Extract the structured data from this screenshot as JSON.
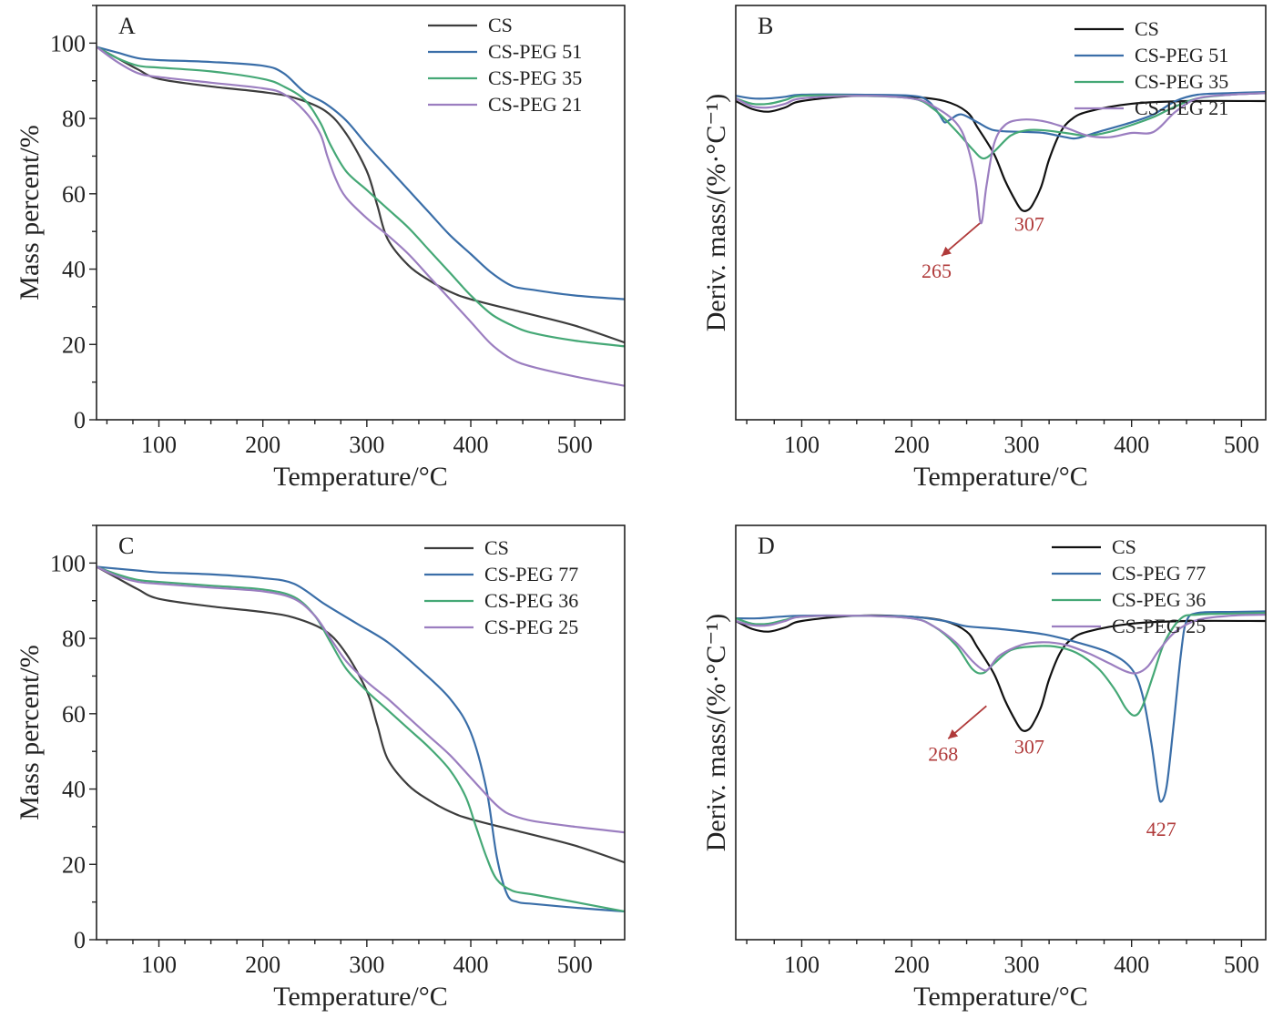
{
  "colors": {
    "CS_mass": "#3d3d3d",
    "CS_deriv": "#111111",
    "blue": "#3a6ea8",
    "green": "#45a876",
    "purple": "#9b7ec0",
    "annotation": "#b03a3a"
  },
  "chart_data": [
    {
      "type": "line",
      "panel": "A",
      "xlabel": "Temperature/°C",
      "ylabel": "Mass percent/%",
      "xlim": [
        40,
        548
      ],
      "ylim": [
        0,
        110
      ],
      "xticks": [
        100,
        200,
        300,
        400,
        500
      ],
      "yticks": [
        0,
        20,
        40,
        60,
        80,
        100
      ],
      "legend_position": "top-right",
      "series": [
        {
          "name": "CS",
          "color": "#3d3d3d",
          "x": [
            40,
            60,
            80,
            100,
            150,
            200,
            230,
            260,
            280,
            300,
            310,
            320,
            340,
            360,
            380,
            400,
            450,
            500,
            548
          ],
          "y": [
            99,
            96,
            93,
            90.5,
            88.5,
            87,
            85.5,
            82,
            76,
            66,
            57,
            48,
            41,
            37,
            34,
            32,
            28.5,
            25,
            20.5
          ]
        },
        {
          "name": "CS-PEG 51",
          "color": "#3a6ea8",
          "x": [
            40,
            60,
            80,
            100,
            150,
            200,
            220,
            240,
            260,
            280,
            300,
            320,
            340,
            360,
            380,
            400,
            420,
            440,
            460,
            500,
            548
          ],
          "y": [
            99,
            97.5,
            96,
            95.5,
            95,
            94,
            92,
            87,
            84,
            79.5,
            73,
            67,
            61,
            55,
            49,
            44,
            39,
            35.5,
            34.5,
            33,
            32
          ]
        },
        {
          "name": "CS-PEG 35",
          "color": "#45a876",
          "x": [
            40,
            60,
            80,
            100,
            150,
            200,
            220,
            240,
            255,
            265,
            280,
            300,
            320,
            340,
            360,
            380,
            400,
            420,
            440,
            460,
            500,
            548
          ],
          "y": [
            99,
            96,
            94,
            93.5,
            92.5,
            90.5,
            88.5,
            85,
            79,
            73,
            66,
            61,
            56,
            51,
            45,
            39,
            33,
            28,
            25,
            23,
            21,
            19.5
          ]
        },
        {
          "name": "CS-PEG 21",
          "color": "#9b7ec0",
          "x": [
            40,
            60,
            80,
            100,
            150,
            200,
            220,
            240,
            255,
            262,
            270,
            280,
            300,
            320,
            340,
            360,
            380,
            400,
            420,
            440,
            460,
            500,
            548
          ],
          "y": [
            99,
            95,
            92,
            91,
            89.5,
            88,
            86.5,
            82,
            76,
            70,
            64,
            59,
            53.5,
            49,
            44,
            38,
            32,
            26,
            20,
            16,
            14,
            11.5,
            9
          ]
        }
      ]
    },
    {
      "type": "line",
      "panel": "B",
      "xlabel": "Temperature/°C",
      "ylabel": "Deriv. mass/(%·°C⁻¹)",
      "xlim": [
        40,
        522
      ],
      "ylim": [
        -0.62,
        0.16
      ],
      "xticks": [
        100,
        200,
        300,
        400,
        500
      ],
      "yticks": [],
      "legend_position": "top-right",
      "annotations": [
        {
          "label": "265",
          "x": 262,
          "y": -0.25,
          "arrow": true
        },
        {
          "label": "307",
          "x": 307,
          "y": -0.22,
          "arrow": false
        }
      ],
      "series": [
        {
          "name": "CS",
          "color": "#111111",
          "x": [
            40,
            55,
            70,
            85,
            100,
            150,
            200,
            230,
            250,
            260,
            275,
            285,
            295,
            300,
            305,
            310,
            318,
            325,
            335,
            345,
            360,
            400,
            450,
            522
          ],
          "y": [
            -0.02,
            -0.035,
            -0.04,
            -0.032,
            -0.02,
            -0.01,
            -0.012,
            -0.02,
            -0.04,
            -0.07,
            -0.12,
            -0.17,
            -0.21,
            -0.225,
            -0.226,
            -0.215,
            -0.18,
            -0.13,
            -0.08,
            -0.055,
            -0.04,
            -0.025,
            -0.02,
            -0.02
          ]
        },
        {
          "name": "CS-PEG 51",
          "color": "#3a6ea8",
          "x": [
            40,
            55,
            70,
            85,
            100,
            150,
            200,
            215,
            225,
            230,
            235,
            245,
            260,
            275,
            300,
            320,
            340,
            350,
            370,
            400,
            420,
            440,
            460,
            490,
            522
          ],
          "y": [
            -0.01,
            -0.015,
            -0.015,
            -0.012,
            -0.008,
            -0.008,
            -0.01,
            -0.02,
            -0.045,
            -0.06,
            -0.055,
            -0.045,
            -0.06,
            -0.075,
            -0.078,
            -0.08,
            -0.088,
            -0.09,
            -0.078,
            -0.06,
            -0.045,
            -0.02,
            -0.008,
            -0.005,
            -0.003
          ]
        },
        {
          "name": "CS-PEG 35",
          "color": "#45a876",
          "x": [
            40,
            55,
            70,
            85,
            100,
            150,
            200,
            220,
            240,
            255,
            265,
            275,
            290,
            305,
            320,
            340,
            360,
            380,
            400,
            420,
            440,
            460,
            490,
            522
          ],
          "y": [
            -0.015,
            -0.025,
            -0.025,
            -0.018,
            -0.01,
            -0.01,
            -0.015,
            -0.035,
            -0.075,
            -0.11,
            -0.128,
            -0.115,
            -0.085,
            -0.075,
            -0.075,
            -0.08,
            -0.085,
            -0.078,
            -0.065,
            -0.05,
            -0.03,
            -0.015,
            -0.008,
            -0.005
          ]
        },
        {
          "name": "CS-PEG 21",
          "color": "#9b7ec0",
          "x": [
            40,
            55,
            70,
            85,
            100,
            150,
            200,
            220,
            240,
            250,
            258,
            263,
            268,
            275,
            285,
            300,
            320,
            340,
            360,
            380,
            400,
            420,
            440,
            460,
            490,
            522
          ],
          "y": [
            -0.015,
            -0.03,
            -0.032,
            -0.025,
            -0.015,
            -0.01,
            -0.015,
            -0.03,
            -0.06,
            -0.1,
            -0.17,
            -0.25,
            -0.18,
            -0.1,
            -0.065,
            -0.055,
            -0.058,
            -0.07,
            -0.085,
            -0.088,
            -0.08,
            -0.078,
            -0.04,
            -0.015,
            -0.008,
            -0.005
          ]
        }
      ]
    },
    {
      "type": "line",
      "panel": "C",
      "xlabel": "Temperature/°C",
      "ylabel": "Mass percent/%",
      "xlim": [
        40,
        548
      ],
      "ylim": [
        0,
        110
      ],
      "xticks": [
        100,
        200,
        300,
        400,
        500
      ],
      "yticks": [
        0,
        20,
        40,
        60,
        80,
        100
      ],
      "legend_position": "top-right",
      "series": [
        {
          "name": "CS",
          "color": "#3d3d3d",
          "x": [
            40,
            60,
            80,
            100,
            150,
            200,
            230,
            260,
            280,
            300,
            310,
            320,
            340,
            360,
            380,
            400,
            450,
            500,
            548
          ],
          "y": [
            99,
            96,
            93,
            90.5,
            88.5,
            87,
            85.5,
            82,
            76,
            66,
            57,
            48,
            41,
            37,
            34,
            32,
            28.5,
            25,
            20.5
          ]
        },
        {
          "name": "CS-PEG 77",
          "color": "#3a6ea8",
          "x": [
            40,
            60,
            80,
            100,
            150,
            200,
            230,
            260,
            290,
            320,
            350,
            380,
            400,
            415,
            425,
            435,
            445,
            460,
            500,
            548
          ],
          "y": [
            99,
            98.5,
            98,
            97.5,
            97,
            96,
            94.5,
            89,
            84,
            79,
            72,
            64,
            55,
            40,
            22,
            12,
            10,
            9.5,
            8.5,
            7.5
          ]
        },
        {
          "name": "CS-PEG 36",
          "color": "#45a876",
          "x": [
            40,
            60,
            80,
            100,
            150,
            200,
            230,
            250,
            265,
            280,
            300,
            320,
            340,
            360,
            380,
            395,
            405,
            415,
            425,
            440,
            460,
            500,
            548
          ],
          "y": [
            99,
            97,
            95.5,
            95,
            94,
            93,
            91,
            86,
            79,
            72,
            66,
            61,
            56,
            51,
            45,
            38,
            30,
            22,
            16,
            13,
            12,
            10,
            7.5
          ]
        },
        {
          "name": "CS-PEG 25",
          "color": "#9b7ec0",
          "x": [
            40,
            60,
            80,
            100,
            150,
            200,
            230,
            250,
            265,
            280,
            300,
            320,
            340,
            360,
            380,
            400,
            420,
            430,
            440,
            460,
            500,
            548
          ],
          "y": [
            99,
            96.5,
            95,
            94.5,
            93.5,
            92.5,
            90.5,
            86,
            80,
            74,
            68.5,
            64,
            59,
            54,
            49,
            43,
            37,
            34.5,
            33,
            31.5,
            30,
            28.5
          ]
        }
      ]
    },
    {
      "type": "line",
      "panel": "D",
      "xlabel": "Temperature/°C",
      "ylabel": "Deriv. mass/(%·°C⁻¹)",
      "xlim": [
        40,
        522
      ],
      "ylim": [
        -0.62,
        0.16
      ],
      "xticks": [
        100,
        200,
        300,
        400,
        500
      ],
      "yticks": [],
      "legend_position": "top-right",
      "annotations": [
        {
          "label": "268",
          "x": 268,
          "y": -0.18,
          "arrow": true
        },
        {
          "label": "307",
          "x": 307,
          "y": -0.225,
          "arrow": false
        },
        {
          "label": "427",
          "x": 427,
          "y": -0.38,
          "arrow": false
        }
      ],
      "series": [
        {
          "name": "CS",
          "color": "#111111",
          "x": [
            40,
            55,
            70,
            85,
            100,
            150,
            200,
            230,
            250,
            260,
            275,
            285,
            295,
            300,
            305,
            310,
            318,
            325,
            335,
            345,
            360,
            400,
            450,
            522
          ],
          "y": [
            -0.02,
            -0.035,
            -0.04,
            -0.032,
            -0.02,
            -0.01,
            -0.012,
            -0.02,
            -0.04,
            -0.07,
            -0.12,
            -0.17,
            -0.21,
            -0.225,
            -0.226,
            -0.215,
            -0.18,
            -0.13,
            -0.08,
            -0.055,
            -0.04,
            -0.025,
            -0.02,
            -0.02
          ]
        },
        {
          "name": "CS-PEG 77",
          "color": "#3a6ea8",
          "x": [
            40,
            60,
            80,
            100,
            150,
            200,
            230,
            250,
            280,
            320,
            350,
            380,
            400,
            410,
            418,
            424,
            427,
            432,
            438,
            445,
            450,
            460,
            490,
            522
          ],
          "y": [
            -0.015,
            -0.015,
            -0.012,
            -0.01,
            -0.01,
            -0.012,
            -0.02,
            -0.03,
            -0.035,
            -0.045,
            -0.06,
            -0.08,
            -0.11,
            -0.16,
            -0.25,
            -0.34,
            -0.36,
            -0.33,
            -0.22,
            -0.08,
            -0.02,
            -0.005,
            -0.003,
            -0.002
          ]
        },
        {
          "name": "CS-PEG 36",
          "color": "#45a876",
          "x": [
            40,
            55,
            70,
            85,
            100,
            150,
            200,
            220,
            240,
            255,
            265,
            275,
            290,
            310,
            330,
            350,
            370,
            385,
            395,
            403,
            410,
            420,
            430,
            445,
            460,
            490,
            522
          ],
          "y": [
            -0.015,
            -0.025,
            -0.025,
            -0.018,
            -0.012,
            -0.01,
            -0.015,
            -0.03,
            -0.065,
            -0.11,
            -0.118,
            -0.1,
            -0.075,
            -0.068,
            -0.068,
            -0.08,
            -0.11,
            -0.15,
            -0.185,
            -0.198,
            -0.18,
            -0.12,
            -0.06,
            -0.015,
            -0.008,
            -0.006,
            -0.005
          ]
        },
        {
          "name": "CS-PEG 25",
          "color": "#9b7ec0",
          "x": [
            40,
            55,
            70,
            85,
            100,
            150,
            200,
            220,
            240,
            255,
            265,
            270,
            280,
            300,
            320,
            340,
            360,
            380,
            395,
            405,
            415,
            425,
            440,
            460,
            490,
            522
          ],
          "y": [
            -0.02,
            -0.028,
            -0.028,
            -0.02,
            -0.012,
            -0.01,
            -0.015,
            -0.03,
            -0.06,
            -0.095,
            -0.112,
            -0.11,
            -0.085,
            -0.065,
            -0.06,
            -0.065,
            -0.08,
            -0.1,
            -0.115,
            -0.118,
            -0.105,
            -0.075,
            -0.04,
            -0.018,
            -0.01,
            -0.008
          ]
        }
      ]
    }
  ]
}
